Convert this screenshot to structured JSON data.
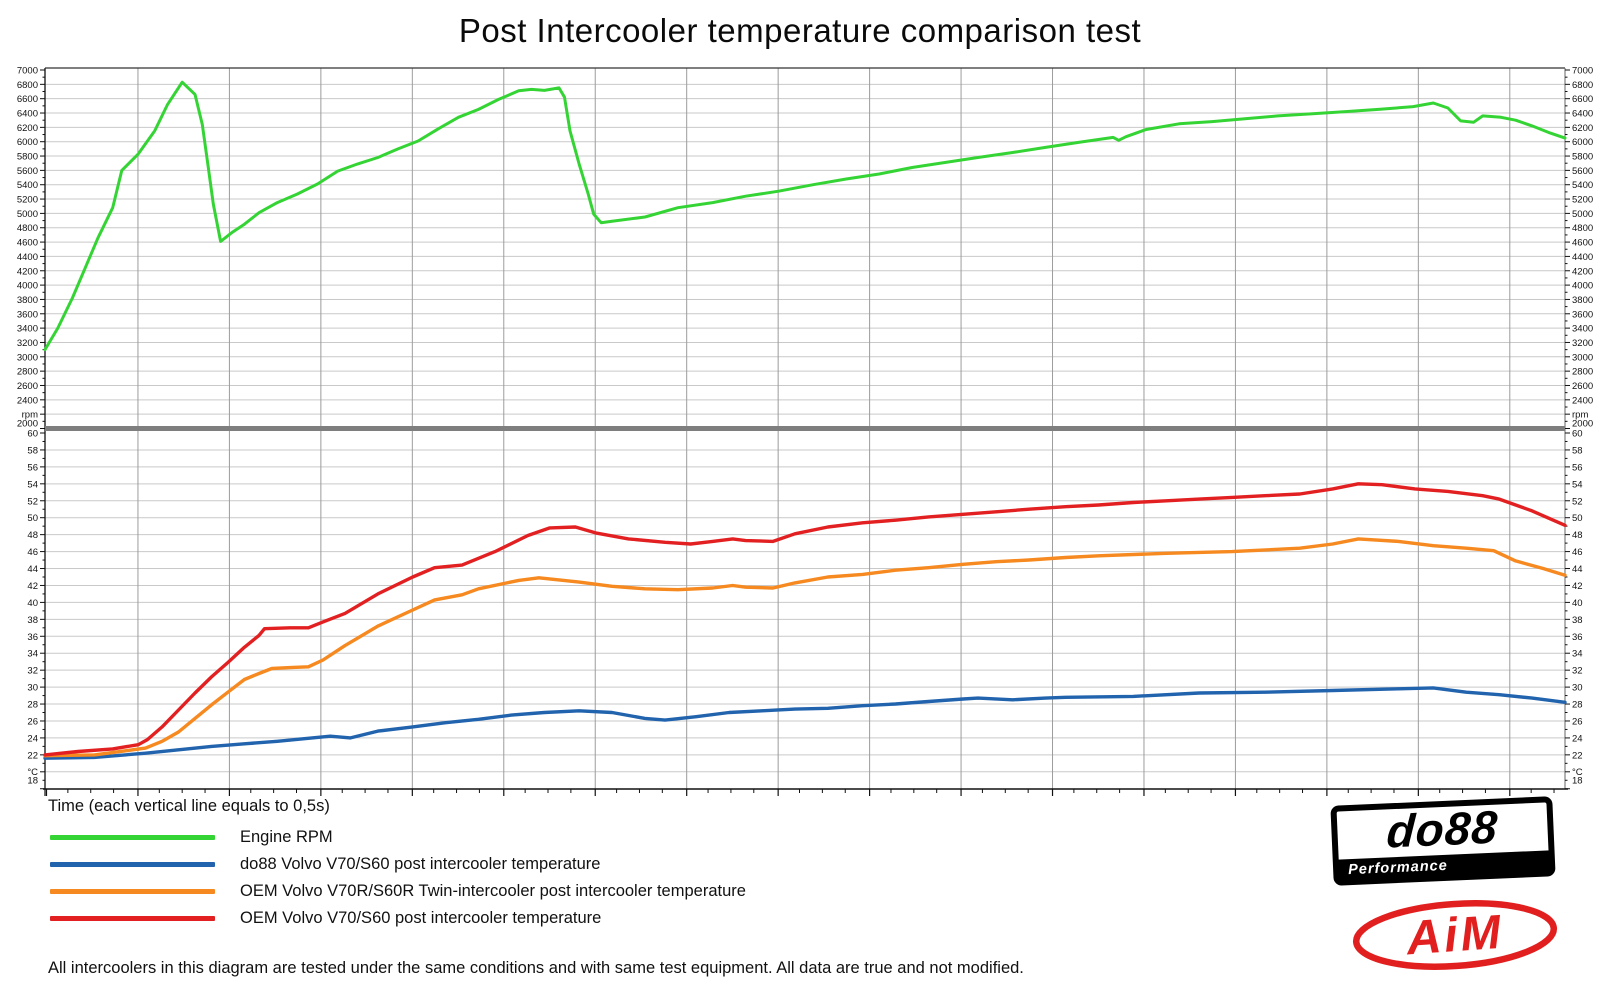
{
  "title": "Post Intercooler temperature comparison test",
  "x_axis_note": "Time (each vertical line equals to 0,5s)",
  "footer_note": "All intercoolers in this diagram are tested under the same conditions and with same test equipment. All data are true and not modified.",
  "legend": [
    {
      "label": "Engine RPM",
      "color": "#35d435"
    },
    {
      "label": "do88 Volvo V70/S60 post intercooler temperature",
      "color": "#2263ae"
    },
    {
      "label": "OEM Volvo V70R/S60R Twin-intercooler post intercooler temperature",
      "color": "#f6891f"
    },
    {
      "label": "OEM Volvo V70/S60 post intercooler temperature",
      "color": "#e32021"
    }
  ],
  "logos": {
    "do88": {
      "text": "do88",
      "sub": "Performance"
    },
    "aim": {
      "text": "AiM",
      "color": "#e21f1f"
    }
  },
  "chart_data": {
    "type": "line",
    "title": "Post Intercooler temperature comparison test",
    "x_axis": {
      "label": "Time",
      "seconds_per_gridline": 0.5,
      "t_max": 8.31,
      "gridlines": 16
    },
    "panels": [
      {
        "id": "rpm",
        "unit": "rpm",
        "ymin": 2000,
        "ymax": 7000,
        "tick": 200,
        "minor": 100
      },
      {
        "id": "temp",
        "unit": "°C",
        "ymin": 18,
        "ymax": 60,
        "tick": 2,
        "minor": 1
      }
    ],
    "colors": {
      "grid_h": "#c9c9c9",
      "grid_v": "#9c9c9c",
      "divider": "#7e7e7e",
      "axis": "#111111"
    },
    "series": [
      {
        "name": "Engine RPM",
        "panel": "rpm",
        "color": "#35d435",
        "width": 3,
        "points": [
          [
            0,
            3100
          ],
          [
            0.07,
            3400
          ],
          [
            0.15,
            3820
          ],
          [
            0.22,
            4240
          ],
          [
            0.29,
            4660
          ],
          [
            0.37,
            5080
          ],
          [
            0.42,
            5600
          ],
          [
            0.51,
            5830
          ],
          [
            0.6,
            6150
          ],
          [
            0.67,
            6520
          ],
          [
            0.75,
            6830
          ],
          [
            0.82,
            6660
          ],
          [
            0.86,
            6240
          ],
          [
            0.89,
            5690
          ],
          [
            0.92,
            5130
          ],
          [
            0.96,
            4610
          ],
          [
            1.02,
            4730
          ],
          [
            1.09,
            4850
          ],
          [
            1.17,
            5010
          ],
          [
            1.27,
            5150
          ],
          [
            1.38,
            5270
          ],
          [
            1.49,
            5410
          ],
          [
            1.6,
            5590
          ],
          [
            1.71,
            5690
          ],
          [
            1.82,
            5780
          ],
          [
            1.93,
            5900
          ],
          [
            2.04,
            6010
          ],
          [
            2.15,
            6180
          ],
          [
            2.26,
            6340
          ],
          [
            2.37,
            6450
          ],
          [
            2.48,
            6590
          ],
          [
            2.59,
            6710
          ],
          [
            2.66,
            6730
          ],
          [
            2.73,
            6715
          ],
          [
            2.81,
            6750
          ],
          [
            2.84,
            6620
          ],
          [
            2.87,
            6150
          ],
          [
            2.92,
            5690
          ],
          [
            2.97,
            5270
          ],
          [
            3.0,
            4990
          ],
          [
            3.04,
            4870
          ],
          [
            3.1,
            4890
          ],
          [
            3.28,
            4950
          ],
          [
            3.46,
            5080
          ],
          [
            3.65,
            5150
          ],
          [
            3.83,
            5240
          ],
          [
            4.01,
            5310
          ],
          [
            4.2,
            5400
          ],
          [
            4.38,
            5480
          ],
          [
            4.56,
            5550
          ],
          [
            4.74,
            5640
          ],
          [
            4.92,
            5710
          ],
          [
            5.1,
            5780
          ],
          [
            5.29,
            5850
          ],
          [
            5.47,
            5920
          ],
          [
            5.65,
            5990
          ],
          [
            5.84,
            6060
          ],
          [
            5.87,
            6020
          ],
          [
            5.91,
            6070
          ],
          [
            6.02,
            6170
          ],
          [
            6.2,
            6250
          ],
          [
            6.38,
            6280
          ],
          [
            6.56,
            6320
          ],
          [
            6.74,
            6360
          ],
          [
            6.93,
            6390
          ],
          [
            7.11,
            6420
          ],
          [
            7.29,
            6450
          ],
          [
            7.48,
            6490
          ],
          [
            7.59,
            6540
          ],
          [
            7.67,
            6470
          ],
          [
            7.74,
            6290
          ],
          [
            7.81,
            6270
          ],
          [
            7.86,
            6360
          ],
          [
            7.96,
            6340
          ],
          [
            8.04,
            6300
          ],
          [
            8.13,
            6220
          ],
          [
            8.22,
            6130
          ],
          [
            8.31,
            6050
          ]
        ]
      },
      {
        "name": "do88 Volvo V70/S60 post intercooler temperature",
        "panel": "temp",
        "color": "#2263ae",
        "width": 3.4,
        "points": [
          [
            0,
            21.6
          ],
          [
            0.27,
            21.7
          ],
          [
            0.55,
            22.2
          ],
          [
            0.73,
            22.6
          ],
          [
            0.91,
            23.0
          ],
          [
            1.09,
            23.3
          ],
          [
            1.27,
            23.6
          ],
          [
            1.46,
            24.0
          ],
          [
            1.56,
            24.2
          ],
          [
            1.67,
            24.0
          ],
          [
            1.82,
            24.8
          ],
          [
            2.01,
            25.3
          ],
          [
            2.19,
            25.8
          ],
          [
            2.37,
            26.2
          ],
          [
            2.55,
            26.7
          ],
          [
            2.73,
            27.0
          ],
          [
            2.92,
            27.2
          ],
          [
            3.1,
            27.0
          ],
          [
            3.28,
            26.3
          ],
          [
            3.39,
            26.1
          ],
          [
            3.56,
            26.5
          ],
          [
            3.74,
            27.0
          ],
          [
            3.92,
            27.2
          ],
          [
            4.1,
            27.4
          ],
          [
            4.28,
            27.5
          ],
          [
            4.47,
            27.8
          ],
          [
            4.65,
            28.0
          ],
          [
            4.83,
            28.3
          ],
          [
            5.02,
            28.6
          ],
          [
            5.1,
            28.7
          ],
          [
            5.29,
            28.5
          ],
          [
            5.47,
            28.7
          ],
          [
            5.58,
            28.8
          ],
          [
            5.95,
            28.9
          ],
          [
            6.31,
            29.3
          ],
          [
            6.67,
            29.4
          ],
          [
            7.04,
            29.6
          ],
          [
            7.4,
            29.8
          ],
          [
            7.59,
            29.9
          ],
          [
            7.77,
            29.4
          ],
          [
            7.95,
            29.1
          ],
          [
            8.13,
            28.7
          ],
          [
            8.31,
            28.2
          ]
        ]
      },
      {
        "name": "OEM Volvo V70R/S60R Twin-intercooler post intercooler temperature",
        "panel": "temp",
        "color": "#f6891f",
        "width": 3.4,
        "points": [
          [
            0,
            21.9
          ],
          [
            0.27,
            22.0
          ],
          [
            0.45,
            22.5
          ],
          [
            0.55,
            22.8
          ],
          [
            0.64,
            23.6
          ],
          [
            0.73,
            24.7
          ],
          [
            0.82,
            26.3
          ],
          [
            0.91,
            27.9
          ],
          [
            1.0,
            29.4
          ],
          [
            1.09,
            30.9
          ],
          [
            1.17,
            31.6
          ],
          [
            1.24,
            32.2
          ],
          [
            1.34,
            32.3
          ],
          [
            1.44,
            32.4
          ],
          [
            1.52,
            33.2
          ],
          [
            1.64,
            34.9
          ],
          [
            1.82,
            37.2
          ],
          [
            2.01,
            39.1
          ],
          [
            2.13,
            40.3
          ],
          [
            2.28,
            40.9
          ],
          [
            2.37,
            41.6
          ],
          [
            2.59,
            42.6
          ],
          [
            2.7,
            42.9
          ],
          [
            2.92,
            42.4
          ],
          [
            3.1,
            41.9
          ],
          [
            3.28,
            41.6
          ],
          [
            3.46,
            41.5
          ],
          [
            3.65,
            41.7
          ],
          [
            3.76,
            42.0
          ],
          [
            3.83,
            41.8
          ],
          [
            3.98,
            41.7
          ],
          [
            4.1,
            42.3
          ],
          [
            4.28,
            43.0
          ],
          [
            4.47,
            43.3
          ],
          [
            4.65,
            43.8
          ],
          [
            4.83,
            44.1
          ],
          [
            5.02,
            44.5
          ],
          [
            5.2,
            44.8
          ],
          [
            5.38,
            45.0
          ],
          [
            5.58,
            45.3
          ],
          [
            5.76,
            45.5
          ],
          [
            6.13,
            45.8
          ],
          [
            6.49,
            46.0
          ],
          [
            6.86,
            46.4
          ],
          [
            7.04,
            46.9
          ],
          [
            7.18,
            47.5
          ],
          [
            7.4,
            47.2
          ],
          [
            7.59,
            46.7
          ],
          [
            7.77,
            46.4
          ],
          [
            7.92,
            46.1
          ],
          [
            8.04,
            44.9
          ],
          [
            8.19,
            44.0
          ],
          [
            8.31,
            43.2
          ]
        ]
      },
      {
        "name": "OEM Volvo V70/S60 post intercooler temperature",
        "panel": "temp",
        "color": "#e32021",
        "width": 3.4,
        "points": [
          [
            0,
            22.0
          ],
          [
            0.18,
            22.4
          ],
          [
            0.37,
            22.7
          ],
          [
            0.51,
            23.2
          ],
          [
            0.56,
            23.8
          ],
          [
            0.64,
            25.3
          ],
          [
            0.73,
            27.3
          ],
          [
            0.82,
            29.3
          ],
          [
            0.91,
            31.2
          ],
          [
            1.0,
            32.9
          ],
          [
            1.09,
            34.7
          ],
          [
            1.17,
            36.1
          ],
          [
            1.2,
            36.9
          ],
          [
            1.34,
            37.0
          ],
          [
            1.44,
            37.0
          ],
          [
            1.52,
            37.7
          ],
          [
            1.64,
            38.7
          ],
          [
            1.82,
            41.0
          ],
          [
            2.01,
            43.0
          ],
          [
            2.13,
            44.1
          ],
          [
            2.28,
            44.4
          ],
          [
            2.46,
            46.0
          ],
          [
            2.64,
            47.9
          ],
          [
            2.76,
            48.8
          ],
          [
            2.9,
            48.9
          ],
          [
            3.01,
            48.2
          ],
          [
            3.19,
            47.5
          ],
          [
            3.39,
            47.1
          ],
          [
            3.53,
            46.9
          ],
          [
            3.65,
            47.2
          ],
          [
            3.76,
            47.5
          ],
          [
            3.83,
            47.3
          ],
          [
            3.98,
            47.2
          ],
          [
            4.1,
            48.1
          ],
          [
            4.28,
            48.9
          ],
          [
            4.47,
            49.4
          ],
          [
            4.65,
            49.7
          ],
          [
            4.83,
            50.1
          ],
          [
            5.02,
            50.4
          ],
          [
            5.2,
            50.7
          ],
          [
            5.38,
            51.0
          ],
          [
            5.58,
            51.3
          ],
          [
            5.76,
            51.5
          ],
          [
            5.95,
            51.8
          ],
          [
            6.13,
            52.0
          ],
          [
            6.31,
            52.2
          ],
          [
            6.49,
            52.4
          ],
          [
            6.67,
            52.6
          ],
          [
            6.86,
            52.8
          ],
          [
            7.04,
            53.4
          ],
          [
            7.18,
            54.0
          ],
          [
            7.31,
            53.9
          ],
          [
            7.49,
            53.4
          ],
          [
            7.67,
            53.1
          ],
          [
            7.86,
            52.6
          ],
          [
            7.95,
            52.2
          ],
          [
            8.13,
            50.8
          ],
          [
            8.31,
            49.1
          ]
        ]
      }
    ]
  }
}
